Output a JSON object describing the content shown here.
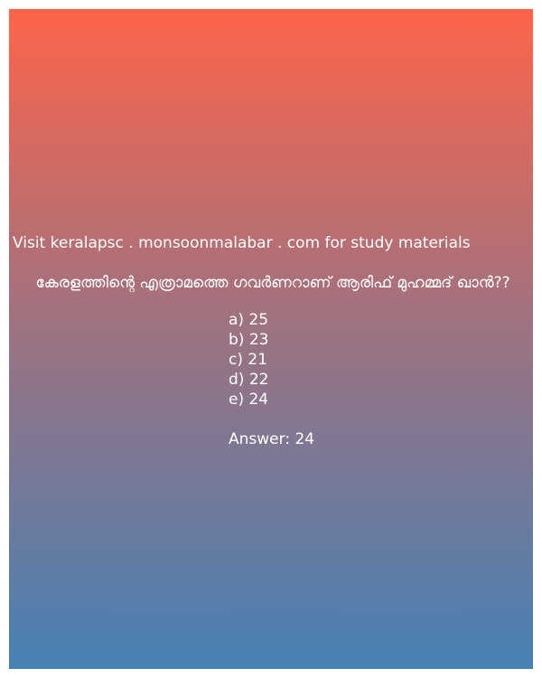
{
  "card": {
    "gradient_top": "#fe644a",
    "gradient_bottom": "#4781b4"
  },
  "site_text": "Visit keralapsc . monsoonmalabar . com for study materials",
  "question": "കേരളത്തിന്റെ എത്രാമത്തെ ഗവർണറാണ് ആരിഫ് മുഹമ്മദ് ഖാൻ??",
  "options": [
    "a) 25",
    "b) 23",
    "c) 21",
    "d) 22",
    "e) 24"
  ],
  "answer_text": "Answer: 24"
}
